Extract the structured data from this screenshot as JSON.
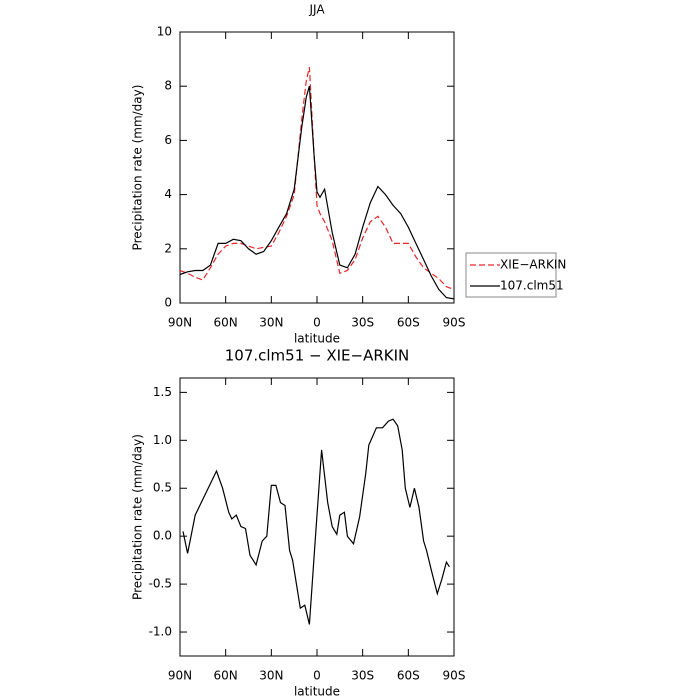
{
  "chart_data": [
    {
      "type": "line",
      "title": "JJA",
      "xlabel": "latitude",
      "ylabel": "Precipitation rate (mm/day)",
      "x": [
        90,
        85,
        80,
        75,
        70,
        65,
        60,
        55,
        50,
        45,
        40,
        35,
        30,
        25,
        20,
        15,
        10,
        7,
        5,
        2,
        0,
        -2,
        -5,
        -10,
        -15,
        -20,
        -25,
        -30,
        -35,
        -40,
        -45,
        -50,
        -55,
        -60,
        -65,
        -70,
        -75,
        -80,
        -85,
        -90
      ],
      "series": [
        {
          "name": "XIE−ARKIN",
          "color": "#e8262a",
          "dash": true,
          "values": [
            1.2,
            1.1,
            0.95,
            0.85,
            1.3,
            1.8,
            2.1,
            2.2,
            2.2,
            2.1,
            2.0,
            2.05,
            2.1,
            2.6,
            3.2,
            4.0,
            6.8,
            8.2,
            8.7,
            5.5,
            3.6,
            3.3,
            3.0,
            2.3,
            1.1,
            1.2,
            1.6,
            2.4,
            3.0,
            3.2,
            2.8,
            2.2,
            2.2,
            2.2,
            1.7,
            1.3,
            1.1,
            0.9,
            0.6,
            0.5
          ]
        },
        {
          "name": "107.clm51",
          "color": "#000000",
          "dash": false,
          "values": [
            1.05,
            1.15,
            1.2,
            1.2,
            1.4,
            2.2,
            2.2,
            2.35,
            2.3,
            2.0,
            1.8,
            1.9,
            2.3,
            2.8,
            3.3,
            4.2,
            6.5,
            7.6,
            8.0,
            5.5,
            4.1,
            3.9,
            4.2,
            2.6,
            1.4,
            1.3,
            1.8,
            2.8,
            3.7,
            4.3,
            4.0,
            3.6,
            3.3,
            2.8,
            2.2,
            1.6,
            1.0,
            0.5,
            0.2,
            0.15
          ]
        }
      ],
      "xlim": [
        90,
        -90
      ],
      "xticks": [
        {
          "value": 90,
          "label": "90N"
        },
        {
          "value": 60,
          "label": "60N"
        },
        {
          "value": 30,
          "label": "30N"
        },
        0,
        {
          "value": -30,
          "label": "30S"
        },
        {
          "value": -60,
          "label": "60S"
        },
        {
          "value": -90,
          "label": "90S"
        }
      ],
      "ylim": [
        0,
        10
      ],
      "yticks": [
        0,
        2,
        4,
        6,
        8,
        10
      ],
      "legend": "right"
    },
    {
      "type": "line",
      "title": "107.clm51 − XIE−ARKIN",
      "xlabel": "latitude",
      "ylabel": "Precipitation rate (mm/day)",
      "x": [
        88,
        85,
        80,
        66,
        62,
        58,
        56,
        53,
        50,
        47,
        44,
        40,
        36,
        33,
        30,
        27,
        24,
        21,
        18,
        16,
        11,
        8,
        5,
        1,
        -3,
        -7,
        -10,
        -13,
        -15,
        -18,
        -20,
        -24,
        -28,
        -32,
        -34,
        -39,
        -43,
        -47,
        -50,
        -53,
        -56,
        -58,
        -61,
        -64,
        -67,
        -70,
        -72,
        -75,
        -79,
        -82,
        -85,
        -87
      ],
      "series": [
        {
          "color": "#000000",
          "dash": false,
          "values": [
            0.05,
            -0.18,
            0.22,
            0.68,
            0.5,
            0.25,
            0.18,
            0.22,
            0.1,
            0.08,
            -0.2,
            -0.3,
            -0.05,
            0.0,
            0.53,
            0.53,
            0.35,
            0.32,
            -0.15,
            -0.25,
            -0.75,
            -0.72,
            -0.92,
            0.0,
            0.9,
            0.35,
            0.1,
            0.02,
            0.22,
            0.25,
            0.0,
            -0.08,
            0.2,
            0.65,
            0.95,
            1.13,
            1.13,
            1.2,
            1.22,
            1.15,
            0.9,
            0.5,
            0.3,
            0.5,
            0.3,
            -0.05,
            -0.15,
            -0.35,
            -0.6,
            -0.45,
            -0.27,
            -0.32
          ]
        }
      ],
      "xlim": [
        90,
        -90
      ],
      "xticks": [
        {
          "value": 90,
          "label": "90N"
        },
        {
          "value": 60,
          "label": "60N"
        },
        {
          "value": 30,
          "label": "30N"
        },
        0,
        {
          "value": -30,
          "label": "30S"
        },
        {
          "value": -60,
          "label": "60S"
        },
        {
          "value": -90,
          "label": "90S"
        }
      ],
      "ylim": [
        -1.25,
        1.65
      ],
      "yticks": [
        {
          "value": -1,
          "label": "-1.0"
        },
        -0.5,
        {
          "value": 0,
          "label": "0.0"
        },
        0.5,
        {
          "value": 1,
          "label": "1.0"
        },
        {
          "value": 1.5,
          "label": "1.5"
        }
      ]
    }
  ]
}
